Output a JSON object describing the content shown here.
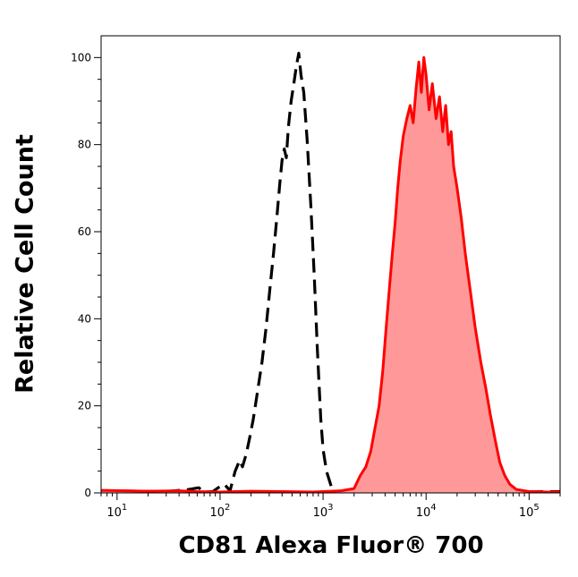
{
  "chart_data": {
    "type": "area",
    "title": "",
    "xlabel": "CD81 Alexa Fluor® 700",
    "ylabel": "Relative Cell Count",
    "x_scale": "log",
    "xlim": [
      7,
      200000
    ],
    "ylim": [
      0,
      105
    ],
    "x_ticks": [
      {
        "base": "10",
        "exp": "1",
        "value": 10
      },
      {
        "base": "10",
        "exp": "2",
        "value": 100
      },
      {
        "base": "10",
        "exp": "3",
        "value": 1000
      },
      {
        "base": "10",
        "exp": "4",
        "value": 10000
      },
      {
        "base": "10",
        "exp": "5",
        "value": 100000
      }
    ],
    "y_ticks": [
      "0",
      "20",
      "40",
      "60",
      "80",
      "100"
    ],
    "grid": false,
    "legend": "none",
    "series": [
      {
        "style": "dashed",
        "color": "#000000",
        "fill": "none",
        "points": [
          [
            7,
            0.5
          ],
          [
            30,
            0.3
          ],
          [
            50,
            0.8
          ],
          [
            62,
            1.2
          ],
          [
            70,
            0.2
          ],
          [
            85,
            0.3
          ],
          [
            100,
            1.5
          ],
          [
            110,
            2.0
          ],
          [
            125,
            0.5
          ],
          [
            140,
            5.0
          ],
          [
            155,
            7.5
          ],
          [
            165,
            6.0
          ],
          [
            180,
            9.0
          ],
          [
            195,
            13.0
          ],
          [
            210,
            17.0
          ],
          [
            230,
            23.0
          ],
          [
            255,
            30.0
          ],
          [
            280,
            38.0
          ],
          [
            305,
            47.0
          ],
          [
            330,
            55.0
          ],
          [
            355,
            63.0
          ],
          [
            380,
            71.0
          ],
          [
            400,
            76.5
          ],
          [
            420,
            79.0
          ],
          [
            440,
            77.0
          ],
          [
            460,
            84.0
          ],
          [
            490,
            90.0
          ],
          [
            520,
            94.0
          ],
          [
            550,
            98.0
          ],
          [
            580,
            101.0
          ],
          [
            610,
            96.0
          ],
          [
            650,
            92.0
          ],
          [
            700,
            81.0
          ],
          [
            760,
            66.0
          ],
          [
            820,
            50.0
          ],
          [
            880,
            33.0
          ],
          [
            950,
            17.0
          ],
          [
            1000,
            10.0
          ],
          [
            1080,
            5.0
          ],
          [
            1200,
            1.5
          ],
          [
            1350,
            0.3
          ],
          [
            2000,
            0.5
          ],
          [
            3000,
            0.2
          ],
          [
            5000,
            0.4
          ],
          [
            8000,
            0.3
          ],
          [
            12000,
            0.8
          ],
          [
            18000,
            0.3
          ],
          [
            30000,
            0.5
          ],
          [
            50000,
            0.2
          ],
          [
            200000,
            0.3
          ]
        ]
      },
      {
        "style": "solid",
        "color": "#ff0000",
        "fill": "#ff9999",
        "points": [
          [
            7,
            0.6
          ],
          [
            20,
            0.4
          ],
          [
            40,
            0.5
          ],
          [
            60,
            0.3
          ],
          [
            100,
            0.2
          ],
          [
            200,
            0.4
          ],
          [
            400,
            0.3
          ],
          [
            800,
            0.2
          ],
          [
            1500,
            0.5
          ],
          [
            2000,
            1.0
          ],
          [
            2300,
            4.0
          ],
          [
            2600,
            6.0
          ],
          [
            2900,
            9.5
          ],
          [
            3200,
            15.0
          ],
          [
            3500,
            20.0
          ],
          [
            3800,
            28.0
          ],
          [
            4100,
            38.0
          ],
          [
            4400,
            47.0
          ],
          [
            4700,
            55.0
          ],
          [
            5000,
            62.0
          ],
          [
            5300,
            70.0
          ],
          [
            5600,
            76.0
          ],
          [
            6000,
            82.0
          ],
          [
            6500,
            86.0
          ],
          [
            7000,
            89.0
          ],
          [
            7500,
            85.0
          ],
          [
            8000,
            93.0
          ],
          [
            8500,
            99.0
          ],
          [
            9000,
            92.0
          ],
          [
            9500,
            100.0
          ],
          [
            10000,
            96.0
          ],
          [
            10700,
            88.0
          ],
          [
            11500,
            94.0
          ],
          [
            12500,
            86.0
          ],
          [
            13500,
            91.0
          ],
          [
            14500,
            83.0
          ],
          [
            15500,
            89.0
          ],
          [
            16500,
            80.0
          ],
          [
            17500,
            83.0
          ],
          [
            18500,
            75.0
          ],
          [
            20000,
            70.0
          ],
          [
            22000,
            63.0
          ],
          [
            24000,
            55.0
          ],
          [
            27000,
            46.0
          ],
          [
            30000,
            38.0
          ],
          [
            34000,
            30.0
          ],
          [
            38000,
            24.0
          ],
          [
            42000,
            18.0
          ],
          [
            47000,
            12.0
          ],
          [
            52000,
            7.0
          ],
          [
            58000,
            4.0
          ],
          [
            65000,
            2.0
          ],
          [
            75000,
            0.8
          ],
          [
            100000,
            0.3
          ],
          [
            150000,
            0.2
          ],
          [
            200000,
            0.2
          ]
        ]
      }
    ]
  }
}
